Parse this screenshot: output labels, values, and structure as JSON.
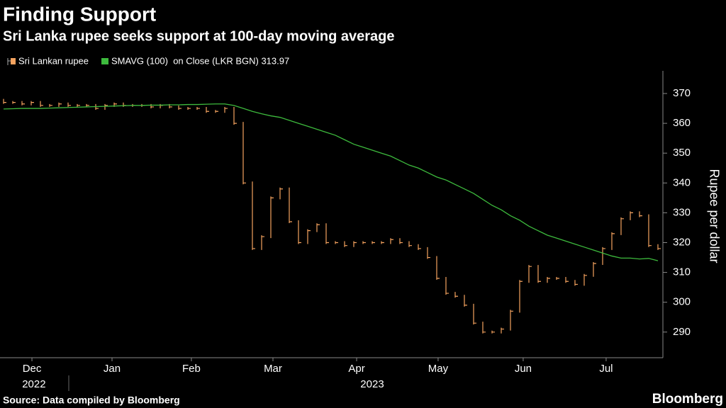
{
  "chart_data": {
    "type": "line",
    "title": "Finding Support",
    "subtitle": "Sri Lanka rupee seeks support at 100-day moving average",
    "y_label": "Rupee per dollar",
    "source": "Source: Data compiled by Bloomberg",
    "brand": "Bloomberg",
    "xlim": [
      -0.385,
      71.54
    ],
    "xticks": [
      {
        "value": 3.08,
        "label": "Dec"
      },
      {
        "value": 11.77,
        "label": "Jan"
      },
      {
        "value": 20.38,
        "label": "Feb"
      },
      {
        "value": 29.23,
        "label": "Mar"
      },
      {
        "value": 38.31,
        "label": "Apr"
      },
      {
        "value": 47.15,
        "label": "May"
      },
      {
        "value": 56.38,
        "label": "Jun"
      },
      {
        "value": 65.38,
        "label": "Jul"
      }
    ],
    "year_labels": [
      {
        "value": 3.3,
        "label": "2022"
      },
      {
        "value": 40,
        "label": "2023"
      }
    ],
    "ylim": [
      281.4,
      377.6
    ],
    "yticks": [
      290,
      300,
      310,
      320,
      330,
      340,
      350,
      360,
      370
    ],
    "series": [
      {
        "name": "Sri Lankan rupee",
        "color": "#f5a35f",
        "style": "bars",
        "values": [
          367,
          367,
          366.5,
          367,
          366,
          366,
          366.5,
          366,
          366,
          366,
          365,
          366,
          366.5,
          366,
          366,
          366,
          365.5,
          366,
          365.5,
          365,
          365,
          365,
          364,
          364,
          365,
          360,
          340,
          318,
          322,
          335,
          338,
          327,
          320,
          324,
          326,
          320,
          320,
          319,
          320,
          320,
          320,
          320,
          321,
          320,
          319,
          318,
          315,
          308,
          303,
          302,
          299,
          293,
          290,
          290,
          291,
          297,
          307,
          312,
          307,
          308,
          308,
          307,
          306,
          309,
          313,
          318,
          323,
          328,
          330,
          329,
          319,
          318
        ]
      },
      {
        "name": "SMAVG (100)  on Close (LKR BGN) 313.97",
        "color": "#3dba3d",
        "style": "line",
        "values": [
          364.8,
          364.9,
          365,
          365,
          365,
          365.1,
          365.2,
          365.3,
          365.4,
          365.5,
          365.6,
          365.7,
          365.8,
          365.9,
          366,
          366,
          366.1,
          366.1,
          366.2,
          366.2,
          366.3,
          366.3,
          366.4,
          366.5,
          366.5,
          366,
          365,
          364,
          363.2,
          362.5,
          362,
          361,
          360,
          359,
          358,
          357,
          356,
          354.5,
          353,
          352,
          351,
          350,
          349,
          347.5,
          346,
          345,
          343.5,
          342,
          341,
          339.5,
          338,
          336.5,
          334.5,
          332.5,
          331,
          329,
          327.5,
          325.5,
          324,
          322.5,
          321.5,
          320.5,
          319.5,
          318.5,
          317.5,
          316.5,
          315.5,
          314.8,
          314.8,
          314.5,
          314.7,
          313.9
        ]
      }
    ]
  }
}
